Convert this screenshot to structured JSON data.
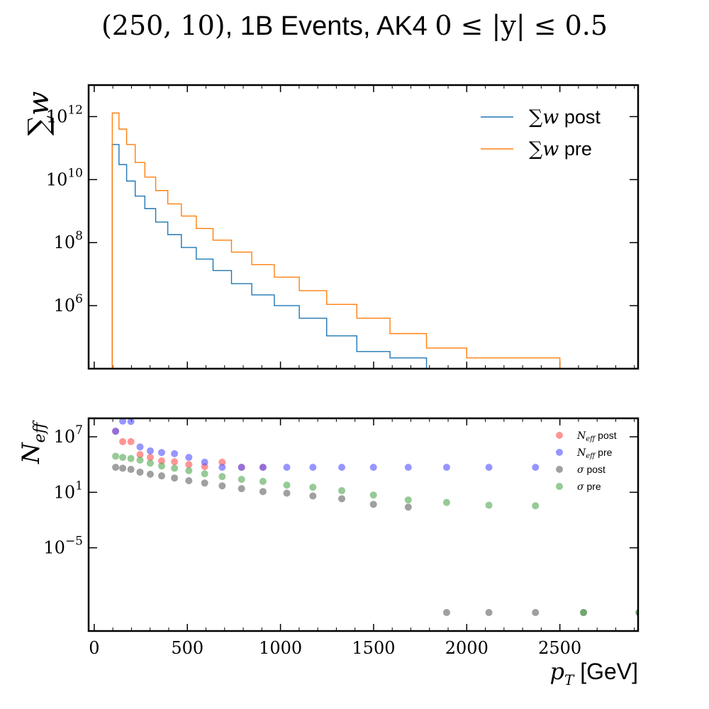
{
  "title": {
    "part1": "(250, 10)",
    "part2": ", 1B Events, AK4 ",
    "part3": "0 ≤ |y| ≤ 0.5"
  },
  "chart_data": [
    {
      "type": "line",
      "ylabel": "∑w",
      "yscale": "log",
      "ylim": [
        10000.0,
        10000000000000.0
      ],
      "xlim": [
        -30,
        2920
      ],
      "yticks": [
        {
          "value": 1000000.0,
          "base": "10",
          "exp": "6"
        },
        {
          "value": 100000000.0,
          "base": "10",
          "exp": "8"
        },
        {
          "value": 10000000000.0,
          "base": "10",
          "exp": "10"
        },
        {
          "value": 1000000000000.0,
          "base": "10",
          "exp": "12"
        }
      ],
      "legend": {
        "position": "top-right"
      },
      "series": [
        {
          "name": "∑w post",
          "legend_symbol": "∑w",
          "legend_text": " post",
          "color": "#1f77b4",
          "edges": [
            97,
            133,
            174,
            220,
            272,
            330,
            395,
            468,
            548,
            638,
            737,
            846,
            967,
            1101,
            1248,
            1410,
            1588,
            1784
          ],
          "values": [
            130000000000.0,
            30000000000.0,
            9000000000.0,
            3000000000.0,
            1200000000.0,
            450000000.0,
            180000000.0,
            70000000.0,
            30000000.0,
            13000000.0,
            5000000.0,
            2200000.0,
            1000000.0,
            400000.0,
            110000.0,
            35000.0,
            22000.0
          ]
        },
        {
          "name": "∑w pre",
          "legend_symbol": "∑w",
          "legend_text": " pre",
          "color": "#ff7f0e",
          "edges": [
            97,
            133,
            174,
            220,
            272,
            330,
            395,
            468,
            548,
            638,
            737,
            846,
            967,
            1101,
            1248,
            1410,
            1588,
            1784,
            2000,
            2238,
            2500
          ],
          "values": [
            1300000000000.0,
            400000000000.0,
            130000000000.0,
            35000000000.0,
            12000000000.0,
            4500000000.0,
            1700000000.0,
            700000000.0,
            280000000.0,
            120000000.0,
            50000000.0,
            20000000.0,
            8000000.0,
            3000000.0,
            1100000.0,
            400000.0,
            130000.0,
            45000.0,
            22000.0,
            22000.0
          ]
        }
      ]
    },
    {
      "type": "scatter",
      "ylabel": "Neff",
      "yscale": "log",
      "ylim": [
        1e-14,
        1000000000.0
      ],
      "xlim": [
        -30,
        2920
      ],
      "xlabel": "[GeV]",
      "xlabel_symbol": "pT",
      "xticks": [
        0,
        500,
        1000,
        1500,
        2000,
        2500
      ],
      "yticks": [
        {
          "value": 1e-05,
          "base": "10",
          "exp": "−5"
        },
        {
          "value": 10,
          "base": "10",
          "exp": "1"
        },
        {
          "value": 10000000.0,
          "base": "10",
          "exp": "7"
        }
      ],
      "legend": {
        "position": "top-right"
      },
      "series": [
        {
          "name": "Neff post",
          "legend_symbol": "Neff",
          "legend_text": " post",
          "color": "#ff5555",
          "x": [
            115,
            153,
            197,
            246,
            301,
            362,
            431,
            508,
            593,
            687,
            791,
            906
          ],
          "y": [
            40000000.0,
            3000000.0,
            3000000.0,
            120000.0,
            60000.0,
            25000.0,
            20000.0,
            10000.0,
            6000.0,
            18000.0,
            5000.0,
            5000.0
          ]
        },
        {
          "name": "Neff pre",
          "legend_symbol": "Neff",
          "legend_text": " pre",
          "color": "#5555ff",
          "x": [
            115,
            153,
            197,
            246,
            301,
            362,
            431,
            508,
            593,
            687,
            791,
            906,
            1034,
            1174,
            1329,
            1499,
            1686,
            1892,
            2119,
            2369
          ],
          "y": [
            40000000.0,
            500000000.0,
            450000000.0,
            800000.0,
            300000.0,
            200000.0,
            150000.0,
            60000.0,
            18000.0,
            5000.0,
            5000.0,
            5000.0,
            5000.0,
            5000.0,
            5000.0,
            5000.0,
            5000.0,
            5000.0,
            5000.0,
            5000.0
          ]
        },
        {
          "name": "σ post",
          "legend_symbol": "σ",
          "legend_text": " post",
          "color": "#666666",
          "x": [
            115,
            153,
            197,
            246,
            301,
            362,
            431,
            508,
            593,
            687,
            791,
            906,
            1034,
            1174,
            1329,
            1499,
            1686,
            1892,
            2119,
            2369,
            2627,
            2925
          ],
          "y": [
            5000.0,
            4000.0,
            3000.0,
            1500.0,
            900,
            600,
            350,
            180,
            100,
            50,
            25,
            12,
            8,
            4,
            2,
            0.5,
            0.25,
            1e-12,
            1e-12,
            1e-12,
            1e-12,
            1e-12
          ]
        },
        {
          "name": "σ pre",
          "legend_symbol": "σ",
          "legend_text": " pre",
          "color": "#55aa55",
          "x": [
            115,
            153,
            197,
            246,
            301,
            362,
            431,
            508,
            593,
            687,
            791,
            906,
            1034,
            1174,
            1329,
            1499,
            1686,
            1892,
            2119,
            2369,
            2627,
            2925
          ],
          "y": [
            80000.0,
            60000.0,
            45000.0,
            30000.0,
            14000.0,
            7000.0,
            4000.0,
            2200.0,
            1000.0,
            500,
            250,
            150,
            60,
            35,
            15,
            5,
            1.5,
            0.8,
            0.4,
            0.35,
            1e-12,
            1e-12
          ]
        }
      ]
    }
  ]
}
